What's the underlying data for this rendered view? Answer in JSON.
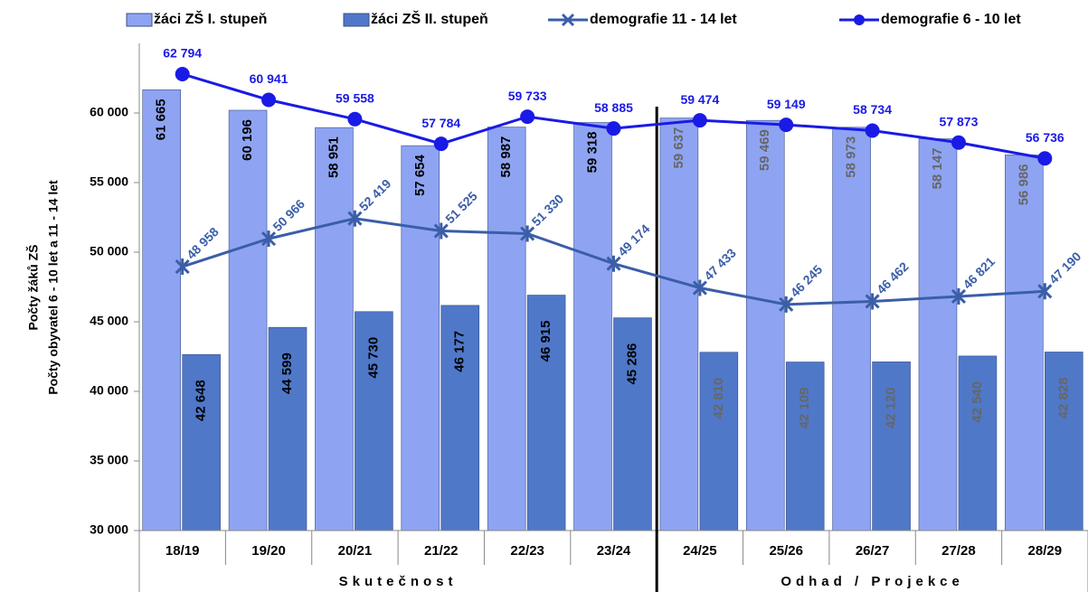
{
  "chart_data": {
    "type": "bar-line",
    "y_axis_label": [
      "Počty žáků ZŠ",
      "Počty obyvatel 6 - 10 let a 11 - 14 let"
    ],
    "categories": [
      "18/19",
      "19/20",
      "20/21",
      "21/22",
      "22/23",
      "23/24",
      "24/25",
      "25/26",
      "26/27",
      "27/28",
      "28/29"
    ],
    "groups": [
      "Skutečnost",
      "Odhad / Projekce"
    ],
    "ylim": [
      30000,
      65000
    ],
    "yticks": [
      {
        "value": 30000,
        "label": "30 000"
      },
      {
        "value": 35000,
        "label": "35 000"
      },
      {
        "value": 40000,
        "label": "40 000"
      },
      {
        "value": 45000,
        "label": "45 000"
      },
      {
        "value": 50000,
        "label": "50 000"
      },
      {
        "value": 55000,
        "label": "55 000"
      },
      {
        "value": 60000,
        "label": "60 000"
      }
    ],
    "series": [
      {
        "name": "žáci ZŠ I. stupeň",
        "kind": "bar",
        "color": "#8ea4f2",
        "values": [
          61665,
          60196,
          58951,
          57654,
          58987,
          59318,
          59637,
          59469,
          58973,
          58147,
          56986
        ],
        "value_labels": [
          "61 665",
          "60 196",
          "58 951",
          "57 654",
          "58 987",
          "59 318",
          "59 637",
          "59 469",
          "58 973",
          "58 147",
          "56 986"
        ]
      },
      {
        "name": "žáci ZŠ II. stupeň",
        "kind": "bar",
        "color": "#4f78c9",
        "values": [
          42648,
          44599,
          45730,
          46177,
          46915,
          45286,
          42810,
          42109,
          42120,
          42540,
          42828
        ],
        "value_labels": [
          "42 648",
          "44 599",
          "45 730",
          "46 177",
          "46 915",
          "45 286",
          "42 810",
          "42 109",
          "42 120",
          "42 540",
          "42 828"
        ]
      },
      {
        "name": "demografie 11 - 14 let",
        "kind": "line",
        "marker": "star",
        "color": "#3b5ea8",
        "values": [
          48958,
          50966,
          52419,
          51525,
          51330,
          49174,
          47433,
          46245,
          46462,
          46821,
          47190
        ],
        "value_labels": [
          "48 958",
          "50 966",
          "52 419",
          "51 525",
          "51 330",
          "49 174",
          "47 433",
          "46 245",
          "46 462",
          "46 821",
          "47 190"
        ]
      },
      {
        "name": "demografie 6 - 10 let",
        "kind": "line",
        "marker": "circle",
        "color": "#1a1ae6",
        "values": [
          62794,
          60941,
          59558,
          57784,
          59733,
          58885,
          59474,
          59149,
          58734,
          57873,
          56736
        ],
        "value_labels": [
          "62 794",
          "60 941",
          "59 558",
          "57 784",
          "59 733",
          "58 885",
          "59 474",
          "59 149",
          "58 734",
          "57 873",
          "56 736"
        ]
      }
    ]
  }
}
